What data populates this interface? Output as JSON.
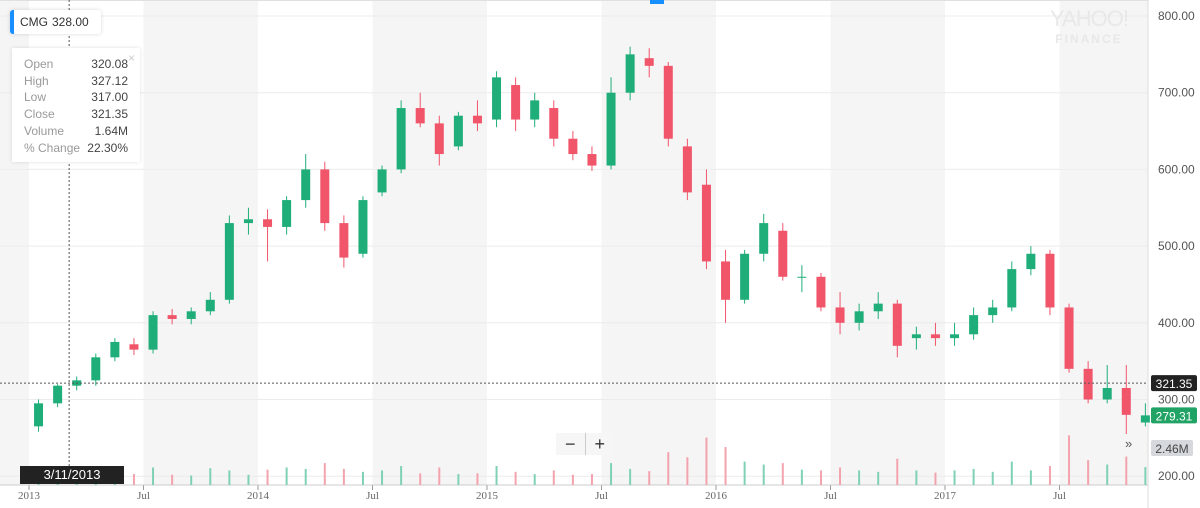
{
  "ticker": {
    "symbol": "CMG",
    "price": "328.00"
  },
  "tooltip": {
    "rows": [
      {
        "label": "Open",
        "value": "320.08"
      },
      {
        "label": "High",
        "value": "327.12"
      },
      {
        "label": "Low",
        "value": "317.00"
      },
      {
        "label": "Close",
        "value": "321.35"
      },
      {
        "label": "Volume",
        "value": "1.64M"
      },
      {
        "label": "% Change",
        "value": "22.30%"
      }
    ],
    "close": "×"
  },
  "watermark": {
    "line1": "YAHOO!",
    "line2": "FINANCE"
  },
  "controls": {
    "zoom_out": "−",
    "zoom_in": "+",
    "more": "»"
  },
  "crosshair": {
    "date": "3/11/2013",
    "price": "321.35"
  },
  "last_price": "279.31",
  "volume_label": "2.46M",
  "colors": {
    "up": "#1fae79",
    "down": "#f0556a",
    "up_volume": "#7fd1b4",
    "down_volume": "#f3a3ad",
    "crosshair_label": "#222222",
    "last_label": "#21a366"
  },
  "chart_data": {
    "type": "candlestick",
    "title": "",
    "y_ticks": [
      "800.00",
      "700.00",
      "600.00",
      "500.00",
      "400.00",
      "300.00",
      "200.00"
    ],
    "ylim": [
      200,
      800
    ],
    "x_ticks": [
      "2013",
      "Jul",
      "2014",
      "Jul",
      "2015",
      "Jul",
      "2016",
      "Jul",
      "2017",
      "Jul"
    ],
    "xlim": [
      "2013-01",
      "2017-11"
    ],
    "grid": true,
    "candles": [
      [
        "2013-01",
        265,
        300,
        258,
        295,
        2.0
      ],
      [
        "2013-02",
        295,
        320,
        290,
        318,
        2.2
      ],
      [
        "2013-03",
        318,
        330,
        312,
        325,
        1.8
      ],
      [
        "2013-04",
        325,
        360,
        318,
        355,
        2.6
      ],
      [
        "2013-05",
        355,
        380,
        350,
        375,
        1.6
      ],
      [
        "2013-06",
        372,
        380,
        358,
        365,
        1.5
      ],
      [
        "2013-07",
        365,
        415,
        360,
        410,
        2.4
      ],
      [
        "2013-08",
        410,
        418,
        398,
        405,
        1.4
      ],
      [
        "2013-09",
        405,
        420,
        398,
        415,
        1.3
      ],
      [
        "2013-10",
        415,
        440,
        410,
        430,
        2.3
      ],
      [
        "2013-11",
        430,
        540,
        425,
        530,
        2.0
      ],
      [
        "2013-12",
        530,
        550,
        515,
        535,
        1.4
      ],
      [
        "2014-01",
        535,
        548,
        480,
        525,
        2.1
      ],
      [
        "2014-02",
        525,
        565,
        515,
        560,
        2.4
      ],
      [
        "2014-03",
        560,
        620,
        550,
        600,
        2.2
      ],
      [
        "2014-04",
        600,
        610,
        520,
        530,
        3.0
      ],
      [
        "2014-05",
        530,
        540,
        472,
        485,
        2.2
      ],
      [
        "2014-06",
        490,
        565,
        485,
        560,
        1.8
      ],
      [
        "2014-07",
        570,
        605,
        565,
        600,
        2.0
      ],
      [
        "2014-08",
        600,
        690,
        595,
        680,
        2.6
      ],
      [
        "2014-09",
        680,
        700,
        655,
        660,
        1.6
      ],
      [
        "2014-10",
        660,
        670,
        605,
        620,
        2.4
      ],
      [
        "2014-11",
        630,
        675,
        625,
        670,
        1.5
      ],
      [
        "2014-12",
        670,
        690,
        650,
        660,
        1.6
      ],
      [
        "2015-01",
        665,
        728,
        655,
        720,
        2.6
      ],
      [
        "2015-02",
        710,
        720,
        650,
        665,
        1.8
      ],
      [
        "2015-03",
        665,
        700,
        655,
        690,
        1.5
      ],
      [
        "2015-04",
        680,
        690,
        630,
        640,
        2.0
      ],
      [
        "2015-05",
        640,
        650,
        612,
        620,
        1.4
      ],
      [
        "2015-06",
        620,
        630,
        598,
        605,
        1.5
      ],
      [
        "2015-07",
        605,
        720,
        600,
        700,
        3.0
      ],
      [
        "2015-08",
        700,
        760,
        690,
        750,
        2.2
      ],
      [
        "2015-09",
        745,
        758,
        720,
        735,
        1.9
      ],
      [
        "2015-10",
        735,
        740,
        630,
        640,
        4.5
      ],
      [
        "2015-11",
        630,
        640,
        560,
        570,
        3.8
      ],
      [
        "2015-12",
        580,
        600,
        470,
        480,
        6.5
      ],
      [
        "2016-01",
        480,
        495,
        400,
        430,
        5.2
      ],
      [
        "2016-02",
        430,
        495,
        425,
        490,
        3.2
      ],
      [
        "2016-03",
        490,
        542,
        480,
        530,
        2.8
      ],
      [
        "2016-04",
        520,
        530,
        455,
        460,
        3.0
      ],
      [
        "2016-05",
        460,
        475,
        440,
        460,
        2.1
      ],
      [
        "2016-06",
        460,
        465,
        415,
        420,
        2.0
      ],
      [
        "2016-07",
        420,
        440,
        385,
        400,
        2.4
      ],
      [
        "2016-08",
        400,
        425,
        390,
        415,
        2.0
      ],
      [
        "2016-09",
        415,
        440,
        405,
        425,
        1.8
      ],
      [
        "2016-10",
        425,
        430,
        355,
        370,
        3.6
      ],
      [
        "2016-11",
        380,
        395,
        365,
        385,
        2.0
      ],
      [
        "2016-12",
        385,
        400,
        370,
        380,
        1.7
      ],
      [
        "2017-01",
        380,
        400,
        370,
        385,
        2.0
      ],
      [
        "2017-02",
        385,
        420,
        378,
        410,
        2.2
      ],
      [
        "2017-03",
        410,
        430,
        400,
        420,
        1.8
      ],
      [
        "2017-04",
        420,
        480,
        415,
        470,
        3.2
      ],
      [
        "2017-05",
        470,
        500,
        462,
        490,
        2.0
      ],
      [
        "2017-06",
        490,
        495,
        410,
        420,
        2.6
      ],
      [
        "2017-07",
        420,
        425,
        335,
        340,
        6.8
      ],
      [
        "2017-08",
        340,
        350,
        295,
        300,
        3.4
      ],
      [
        "2017-09",
        300,
        345,
        295,
        315,
        2.8
      ],
      [
        "2017-10",
        315,
        345,
        255,
        280,
        3.9
      ],
      [
        "2017-11",
        270,
        295,
        265,
        279.31,
        2.46
      ]
    ]
  }
}
